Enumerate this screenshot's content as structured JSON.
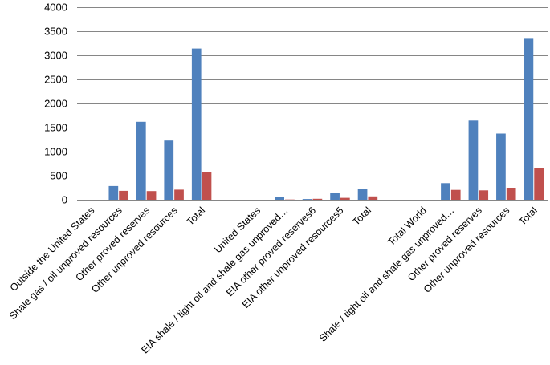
{
  "chart_data": {
    "type": "bar",
    "title": "",
    "xlabel": "",
    "ylabel": "",
    "ylim": [
      0,
      4000
    ],
    "yticks": [
      0,
      500,
      1000,
      1500,
      2000,
      2500,
      3000,
      3500,
      4000
    ],
    "grid": true,
    "legend": "none",
    "categories": [
      "Outside the United States",
      "Shale gas / oil unproved resources",
      "Other proved reserves",
      "Other unproved resources",
      "Total",
      "",
      "United States",
      "EIA shale / tight oil and shale gas unproved…",
      "EIA other proved reserves6",
      "EIA other unproved resources5",
      "Total",
      "",
      "Total World",
      "Shale / tight oil and shale gas unproved…",
      "Other proved reserves",
      "Other unproved resources",
      "Total"
    ],
    "series": [
      {
        "color": "#4f81bd",
        "values": [
          null,
          285,
          1620,
          1230,
          3140,
          null,
          null,
          55,
          15,
          140,
          225,
          null,
          null,
          345,
          1645,
          1375,
          3360
        ]
      },
      {
        "color": "#c0504d",
        "values": [
          null,
          185,
          180,
          210,
          580,
          null,
          null,
          5,
          20,
          40,
          70,
          null,
          null,
          205,
          195,
          250,
          650
        ]
      }
    ]
  }
}
